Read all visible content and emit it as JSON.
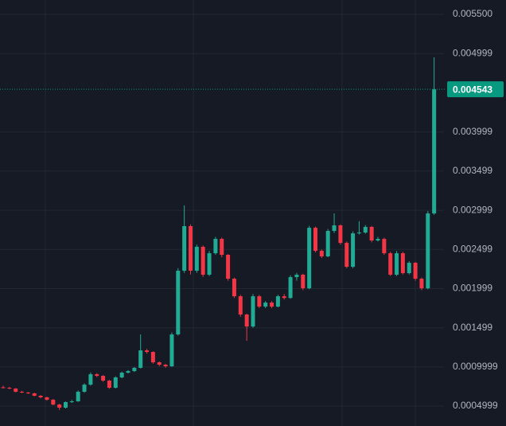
{
  "chart_data": {
    "type": "candlestick",
    "open": [
      0.00074,
      0.000734,
      0.000724,
      0.000683,
      0.000673,
      0.000663,
      0.000632,
      0.000612,
      0.000581,
      0.00052,
      0.00048,
      0.000551,
      0.000561,
      0.000683,
      0.000774,
      0.000907,
      0.000886,
      0.000825,
      0.000734,
      0.000866,
      0.000927,
      0.000947,
      0.000988,
      0.001211,
      0.001191,
      0.001059,
      0.001028,
      0.001008,
      0.001415,
      0.002228,
      0.002797,
      0.002228,
      0.002533,
      0.002177,
      0.002451,
      0.002634,
      0.002431,
      0.002126,
      0.001902,
      0.001669,
      0.001516,
      0.001902,
      0.00177,
      0.001821,
      0.00177,
      0.001902,
      0.00188,
      0.002146,
      0.002177,
      0.002004,
      0.002776,
      0.002482,
      0.002411,
      0.002736,
      0.002807,
      0.002583,
      0.002278,
      0.002705,
      0.002715,
      0.002787,
      0.002614,
      0.002634,
      0.002451,
      0.002177,
      0.002451,
      0.002197,
      0.002329,
      0.002126,
      0.002004,
      0.002959
    ],
    "high": [
      0.00076,
      0.000745,
      0.00073,
      0.000695,
      0.00068,
      0.00067,
      0.00064,
      0.00062,
      0.00059,
      0.00053,
      0.00056,
      0.00058,
      0.0007,
      0.00079,
      0.00093,
      0.00092,
      0.000895,
      0.000835,
      0.00088,
      0.00094,
      0.00096,
      0.001,
      0.001415,
      0.00123,
      0.0012,
      0.00107,
      0.00104,
      0.00144,
      0.00226,
      0.003061,
      0.00282,
      0.00256,
      0.00255,
      0.00248,
      0.00266,
      0.00265,
      0.00244,
      0.00214,
      0.00192,
      0.00168,
      0.00193,
      0.00192,
      0.00184,
      0.00184,
      0.00192,
      0.00193,
      0.00217,
      0.0022,
      0.00219,
      0.0028,
      0.00279,
      0.0025,
      0.00276,
      0.002959,
      0.00282,
      0.0026,
      0.00273,
      0.00286,
      0.00281,
      0.0028,
      0.00266,
      0.00265,
      0.00247,
      0.00248,
      0.00247,
      0.00235,
      0.00234,
      0.00214,
      0.00299,
      0.004951
    ],
    "low": [
      0.000725,
      0.000715,
      0.000675,
      0.000665,
      0.000655,
      0.000625,
      0.0006,
      0.00057,
      0.00051,
      0.00045,
      0.00047,
      0.00054,
      0.000555,
      0.00067,
      0.00076,
      0.00087,
      0.00081,
      0.00072,
      0.000725,
      0.000855,
      0.000915,
      0.000935,
      0.00098,
      0.00117,
      0.00104,
      0.00101,
      0.00099,
      0.001,
      0.0014,
      0.0022,
      0.00218,
      0.0022,
      0.00215,
      0.00216,
      0.00243,
      0.0024,
      0.0021,
      0.00188,
      0.00164,
      0.001333,
      0.0015,
      0.00175,
      0.00175,
      0.00175,
      0.00176,
      0.00186,
      0.00187,
      0.0021,
      0.00198,
      0.00199,
      0.00246,
      0.00239,
      0.0024,
      0.00271,
      0.00256,
      0.00226,
      0.00226,
      0.00269,
      0.0027,
      0.00259,
      0.0026,
      0.00243,
      0.00216,
      0.00216,
      0.00218,
      0.00218,
      0.0021,
      0.00198,
      0.00199,
      0.00294
    ],
    "close": [
      0.000734,
      0.000724,
      0.000683,
      0.000673,
      0.000663,
      0.000632,
      0.000612,
      0.000581,
      0.00052,
      0.00048,
      0.000551,
      0.000561,
      0.000683,
      0.000774,
      0.000907,
      0.000886,
      0.000825,
      0.000734,
      0.000866,
      0.000927,
      0.000947,
      0.000988,
      0.001211,
      0.001191,
      0.001059,
      0.001028,
      0.001008,
      0.001415,
      0.002228,
      0.002797,
      0.002228,
      0.002533,
      0.002177,
      0.002451,
      0.002634,
      0.002431,
      0.002126,
      0.001902,
      0.001669,
      0.001516,
      0.001902,
      0.00177,
      0.001821,
      0.00177,
      0.001902,
      0.00188,
      0.002146,
      0.002177,
      0.002004,
      0.002776,
      0.002482,
      0.002411,
      0.002736,
      0.002807,
      0.002583,
      0.002278,
      0.002705,
      0.002715,
      0.002787,
      0.002614,
      0.002634,
      0.002451,
      0.002177,
      0.002451,
      0.002197,
      0.002329,
      0.002126,
      0.002004,
      0.002959,
      0.004543
    ],
    "up_color": "#22ab94",
    "down_color": "#f23645",
    "last_price": 0.004543,
    "last_price_color": "#089981",
    "ylim": [
      0.000246,
      0.005683
    ],
    "yticks": [
      0.0004999,
      0.0009999,
      0.001499,
      0.001999,
      0.002499,
      0.002999,
      0.003499,
      0.003999,
      0.004999,
      {
        "value": 0.0055,
        "label": "0.005500"
      }
    ],
    "grid": true
  }
}
